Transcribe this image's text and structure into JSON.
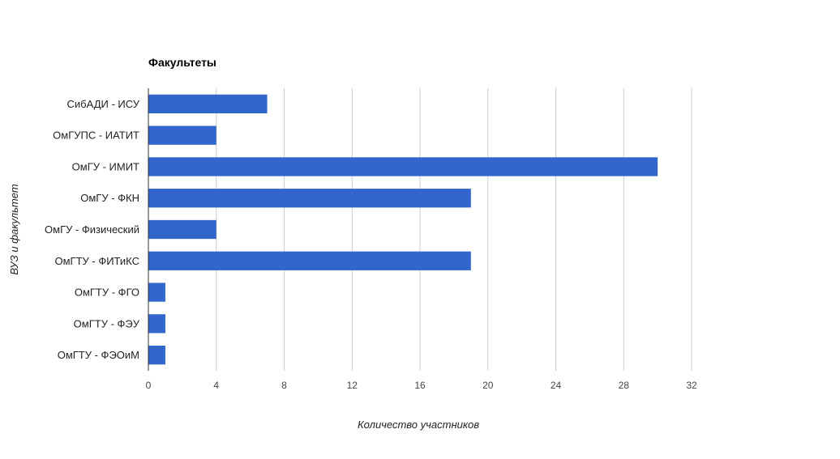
{
  "chart_data": {
    "type": "bar",
    "orientation": "horizontal",
    "title": "Факультеты",
    "xlabel": "Количество участников",
    "ylabel": "ВУЗ и факультет",
    "categories": [
      "СибАДИ - ИСУ",
      "ОмГУПС - ИАТИТ",
      "ОмГУ - ИМИТ",
      "ОмГУ - ФКН",
      "ОмГУ - Физический",
      "ОмГТУ - ФИТиКС",
      "ОмГТУ - ФГО",
      "ОмГТУ - ФЭУ",
      "ОмГТУ - ФЭОиМ"
    ],
    "values": [
      7,
      4,
      30,
      19,
      4,
      19,
      1,
      1,
      1
    ],
    "xlim": [
      0,
      32
    ],
    "xticks": [
      "0",
      "4",
      "8",
      "12",
      "16",
      "20",
      "24",
      "28",
      "32"
    ],
    "grid": "vertical",
    "legend": "none",
    "bar_color": "#3366cc",
    "grid_color": "#cccccc"
  }
}
